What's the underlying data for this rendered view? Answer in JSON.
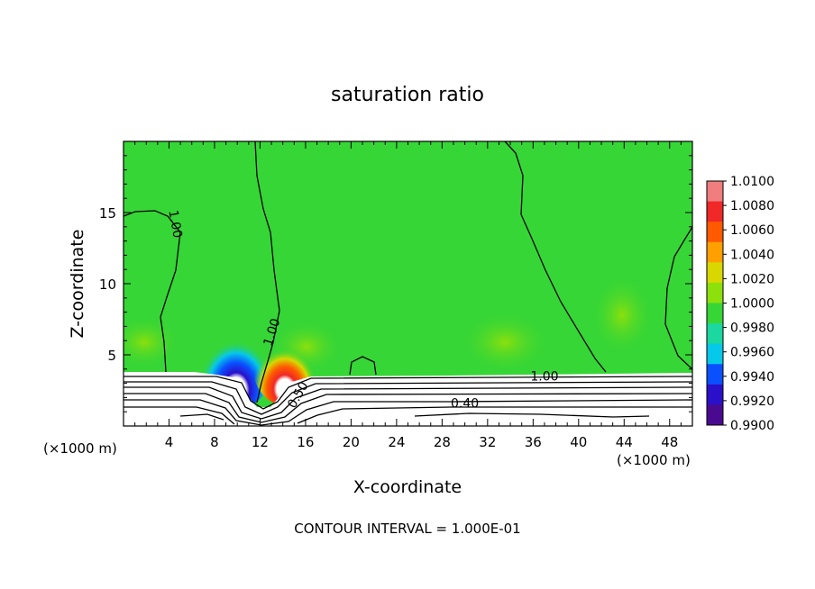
{
  "chart_data": {
    "type": "heatmap",
    "title": "saturation ratio",
    "xlabel": "X-coordinate",
    "ylabel": "Z-coordinate",
    "x_unit_left": "(×1000 m)",
    "x_unit_right": "(×1000 m)",
    "xlim": [
      0,
      50
    ],
    "ylim": [
      0,
      20
    ],
    "x_ticks": [
      4,
      8,
      12,
      16,
      20,
      24,
      28,
      32,
      36,
      40,
      44,
      48
    ],
    "y_ticks": [
      5,
      10,
      15
    ],
    "footer": "CONTOUR INTERVAL = 1.000E-01",
    "colorbar": {
      "labels": [
        "1.0100",
        "1.0080",
        "1.0060",
        "1.0040",
        "1.0020",
        "1.0000",
        "0.9980",
        "0.9960",
        "0.9940",
        "0.9920",
        "0.9900"
      ],
      "colors": [
        "#f07e7e",
        "#f02828",
        "#ff5a00",
        "#ffa000",
        "#d8d800",
        "#8ce00c",
        "#36d636",
        "#1ad8a0",
        "#06c8e8",
        "#0a50ff",
        "#2a10c8",
        "#4a0a90"
      ]
    },
    "contour_labels": [
      {
        "text": "1.00",
        "x": 4.6,
        "z": 14.2,
        "angle": 80
      },
      {
        "text": "1.00",
        "x": 13.0,
        "z": 6.6,
        "angle": -72
      },
      {
        "text": "1.00",
        "x": 37.0,
        "z": 3.5,
        "angle": 0
      },
      {
        "text": "0.40",
        "x": 30.0,
        "z": 1.6,
        "angle": 0
      },
      {
        "text": "0.50",
        "x": 15.3,
        "z": 2.2,
        "angle": -60
      }
    ]
  }
}
